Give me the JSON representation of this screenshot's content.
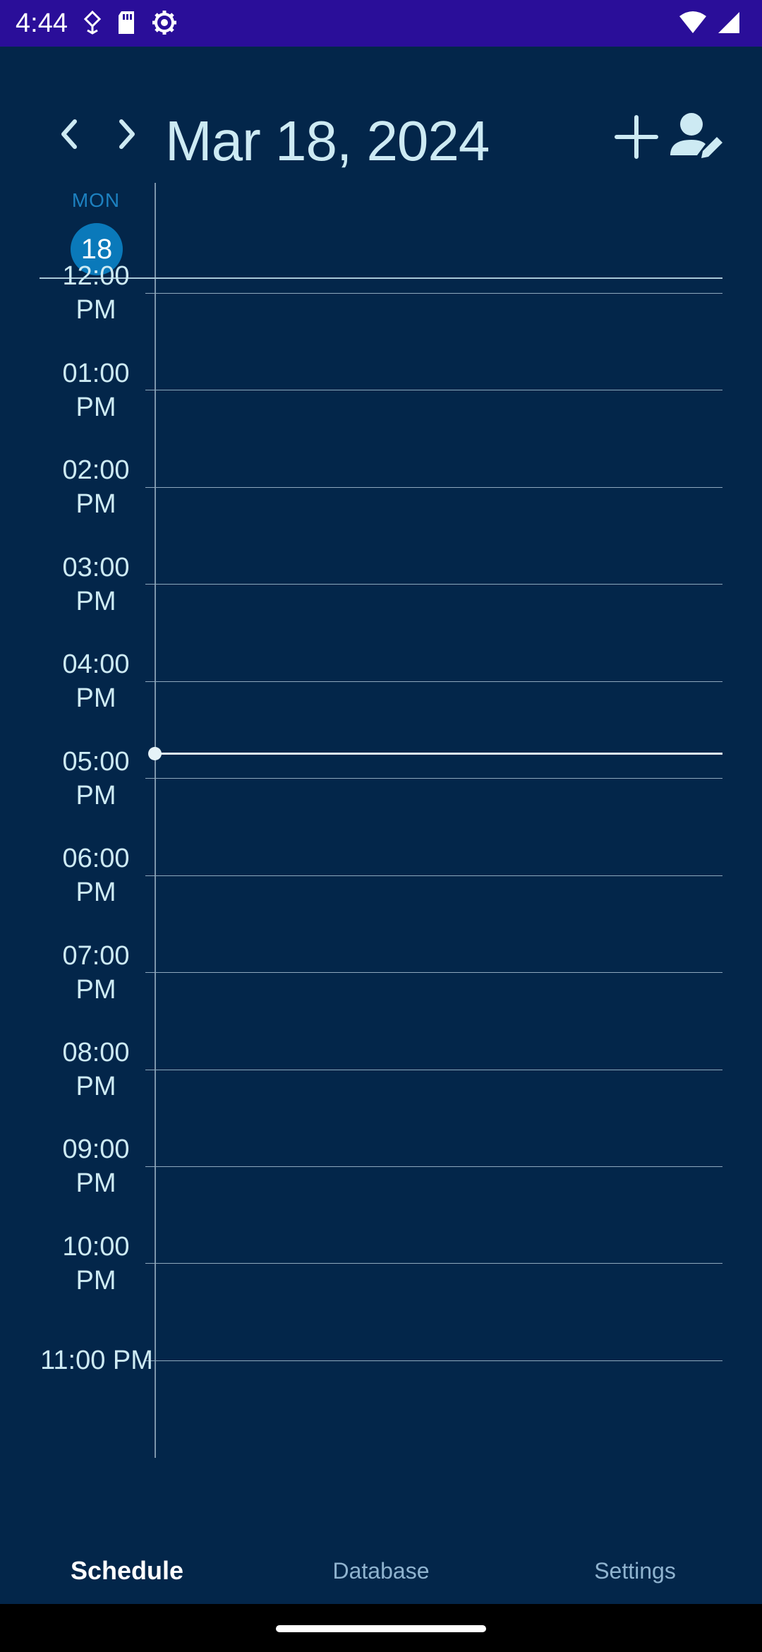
{
  "status_bar": {
    "time": "4:44",
    "left_icons": [
      "location-arrow-icon",
      "sd-card-icon",
      "settings-gear-icon"
    ],
    "right_icons": [
      "wifi-icon",
      "cell-signal-icon"
    ]
  },
  "header": {
    "date_title": "Mar 18, 2024",
    "prev_icon": "chevron-left-icon",
    "next_icon": "chevron-right-icon",
    "add_icon": "plus-icon",
    "edit_person_icon": "person-edit-icon"
  },
  "day": {
    "name": "MON",
    "number": "18"
  },
  "timeline": {
    "hours": [
      {
        "line1": "12:00",
        "line2": "PM"
      },
      {
        "line1": "01:00",
        "line2": "PM"
      },
      {
        "line1": "02:00",
        "line2": "PM"
      },
      {
        "line1": "03:00",
        "line2": "PM"
      },
      {
        "line1": "04:00",
        "line2": "PM"
      },
      {
        "line1": "05:00",
        "line2": "PM"
      },
      {
        "line1": "06:00",
        "line2": "PM"
      },
      {
        "line1": "07:00",
        "line2": "PM"
      },
      {
        "line1": "08:00",
        "line2": "PM"
      },
      {
        "line1": "09:00",
        "line2": "PM"
      },
      {
        "line1": "10:00",
        "line2": "PM"
      },
      {
        "line1": "11:00 PM",
        "line2": ""
      }
    ],
    "current_time_indicator": "4:44"
  },
  "bottom_nav": {
    "tabs": [
      {
        "label": "Schedule",
        "active": true
      },
      {
        "label": "Database",
        "active": false
      },
      {
        "label": "Settings",
        "active": false
      }
    ]
  },
  "colors": {
    "background": "#03264a",
    "status_bar": "#2a0e99",
    "accent": "#0a79ba",
    "text": "#cdeaf3"
  }
}
